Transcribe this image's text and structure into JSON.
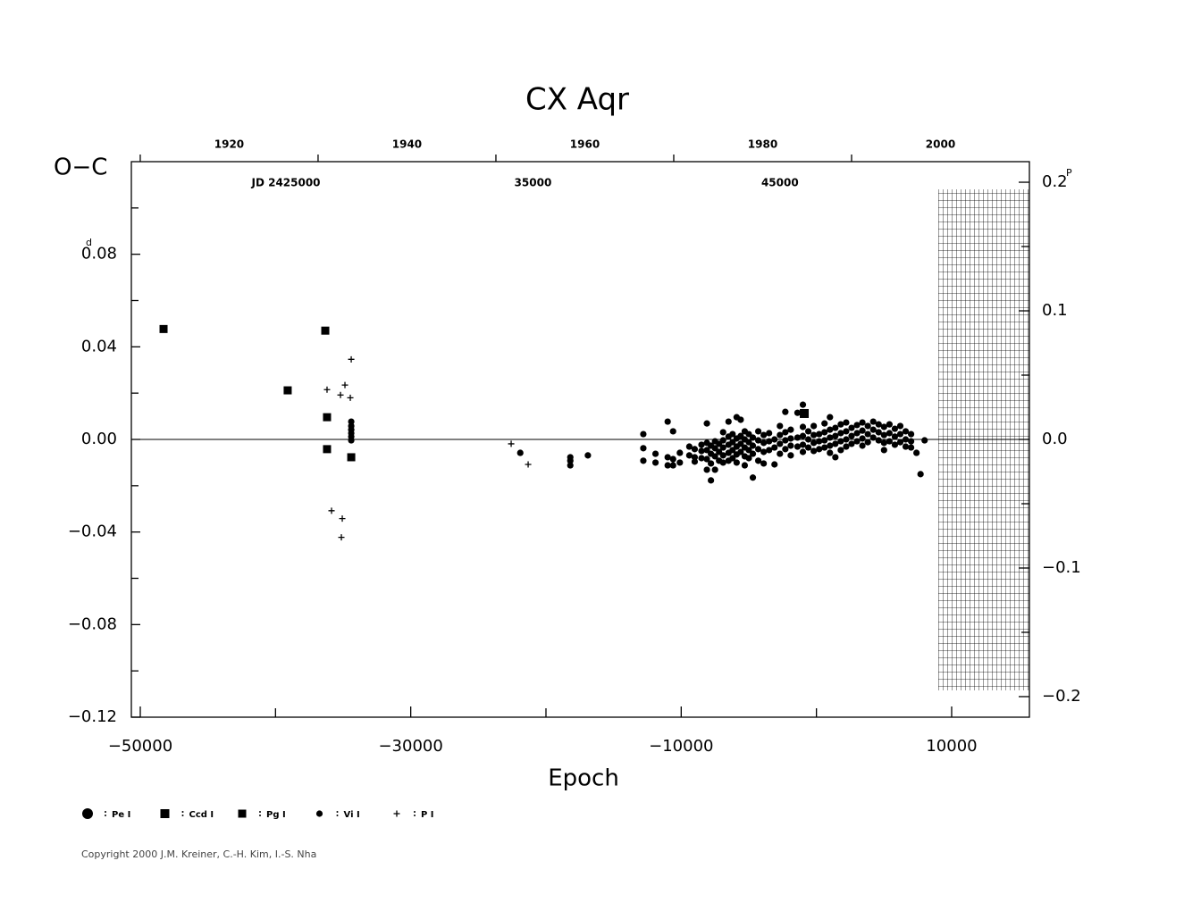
{
  "chart_data": {
    "type": "scatter",
    "title": "CX Aqr",
    "ylabel": "O−C",
    "xlabel": "Epoch",
    "y_unit": "d",
    "y2_unit": "P",
    "copyright": "Copyright 2000 J.M. Kreiner, C.-H. Kim, I.-S. Nha",
    "xlim": [
      -50660,
      15750
    ],
    "xticks": [
      {
        "value": -50000,
        "label": "−50000"
      },
      {
        "value": -30000,
        "label": "−30000"
      },
      {
        "value": -10000,
        "label": "−10000"
      },
      10000
    ],
    "xminor": [
      -40000,
      -20000,
      0
    ],
    "ylim": [
      -0.12,
      0.12
    ],
    "yticks": [
      {
        "value": -0.12,
        "label": "−0.12"
      },
      {
        "value": -0.08,
        "label": "−0.08"
      },
      {
        "value": -0.04,
        "label": "−0.04"
      },
      {
        "value": 0,
        "label": "0.00"
      },
      0.04,
      0.08
    ],
    "yminor": [
      -0.1,
      -0.06,
      -0.02,
      0.02,
      0.06,
      0.1
    ],
    "y2lim": [
      -0.216,
      0.216
    ],
    "y2ticks": [
      {
        "value": -0.2,
        "label": "−0.2"
      },
      {
        "value": -0.1,
        "label": "−0.1"
      },
      {
        "value": 0,
        "label": "0.0"
      },
      0.1,
      0.2
    ],
    "y2minor": [
      -0.15,
      -0.05,
      0.05,
      0.15
    ],
    "x2lim": [
      1909,
      2010
    ],
    "x2ticks": [
      1920,
      1940,
      1960,
      1980,
      2000
    ],
    "x2minor": [
      1910,
      1930,
      1950,
      1970,
      1990
    ],
    "jdlim": [
      18740,
      55100
    ],
    "jdticks": [
      {
        "value": 25000,
        "label": "JD 2425000"
      },
      {
        "value": 35000,
        "label": "35000"
      },
      {
        "value": 45000,
        "label": "45000"
      }
    ],
    "series": [
      {
        "name": "Pe I",
        "marker": "circle-large",
        "x": [],
        "values": []
      },
      {
        "name": "Ccd I",
        "marker": "square-large",
        "x": [
          -900
        ],
        "values": [
          0.0112
        ]
      },
      {
        "name": "Pg I",
        "marker": "square",
        "x": [
          -48280,
          -39100,
          -36320,
          -36190,
          -36190,
          -34400
        ],
        "values": [
          0.0477,
          0.0212,
          0.047,
          0.0096,
          -0.0042,
          -0.0077
        ]
      },
      {
        "name": "Vi I",
        "marker": "dot",
        "x": [
          -34400,
          -34400,
          -34400,
          -34400,
          -34400,
          -34400,
          -21900,
          -18200,
          -18200,
          -18200,
          -16900,
          -12800,
          -12800,
          -12800,
          -11900,
          -11900,
          -11000,
          -11000,
          -11000,
          -10600,
          -10600,
          -10600,
          -10100,
          -10100,
          -9400,
          -9400,
          -9000,
          -9000,
          -9000,
          -8500,
          -8500,
          -8500,
          -8100,
          -8100,
          -8100,
          -8100,
          -8100,
          -7800,
          -7800,
          -7800,
          -7800,
          -7500,
          -7500,
          -7500,
          -7500,
          -7200,
          -7200,
          -7200,
          -6900,
          -6900,
          -6900,
          -6900,
          -6900,
          -6500,
          -6500,
          -6500,
          -6500,
          -6500,
          -6200,
          -6200,
          -6200,
          -6200,
          -5900,
          -5900,
          -5900,
          -5900,
          -5900,
          -5600,
          -5600,
          -5600,
          -5600,
          -5300,
          -5300,
          -5300,
          -5300,
          -5300,
          -5000,
          -5000,
          -5000,
          -5000,
          -4700,
          -4700,
          -4700,
          -4700,
          -4300,
          -4300,
          -4300,
          -4300,
          -3900,
          -3900,
          -3900,
          -3900,
          -3500,
          -3500,
          -3500,
          -3100,
          -3100,
          -3100,
          -2700,
          -2700,
          -2700,
          -2700,
          -2300,
          -2300,
          -2300,
          -2300,
          -1900,
          -1900,
          -1900,
          -1900,
          -1400,
          -1400,
          -1400,
          -1000,
          -1000,
          -1000,
          -1000,
          -1000,
          -600,
          -600,
          -600,
          -200,
          -200,
          -200,
          -200,
          200,
          200,
          200,
          600,
          600,
          600,
          600,
          1000,
          1000,
          1000,
          1000,
          1000,
          1400,
          1400,
          1400,
          1400,
          1800,
          1800,
          1800,
          1800,
          2200,
          2200,
          2200,
          2200,
          2600,
          2600,
          2600,
          3000,
          3000,
          3000,
          3400,
          3400,
          3400,
          3400,
          3800,
          3800,
          3800,
          4200,
          4200,
          4200,
          4600,
          4600,
          4600,
          5000,
          5000,
          5000,
          5000,
          5400,
          5400,
          5400,
          5800,
          5800,
          5800,
          6200,
          6200,
          6200,
          6600,
          6600,
          6600,
          7000,
          7000,
          7000,
          7400,
          7700,
          8000
        ],
        "values": [
          0.0077,
          0.0058,
          0.0042,
          0.0027,
          0.0012,
          -0.0004,
          -0.0058,
          -0.0077,
          -0.0092,
          -0.0112,
          -0.0069,
          0.0023,
          -0.0038,
          -0.0092,
          -0.0062,
          -0.01,
          0.0077,
          -0.0077,
          -0.0112,
          0.0035,
          -0.0085,
          -0.0112,
          -0.0058,
          -0.01,
          -0.0031,
          -0.0069,
          -0.0042,
          -0.0077,
          -0.0096,
          -0.0023,
          -0.005,
          -0.0081,
          0.0069,
          -0.0015,
          -0.0046,
          -0.0085,
          -0.0131,
          -0.0177,
          -0.0027,
          -0.0062,
          -0.0104,
          -0.0131,
          -0.0008,
          -0.0038,
          -0.0073,
          -0.0019,
          -0.0054,
          -0.0092,
          0.0031,
          -0.0004,
          -0.0035,
          -0.0069,
          -0.01,
          0.0077,
          0.0012,
          -0.0023,
          -0.0058,
          -0.0092,
          0.0023,
          -0.0012,
          -0.0046,
          -0.0081,
          0.0096,
          0.0004,
          -0.0031,
          -0.0065,
          -0.01,
          0.0085,
          0.0015,
          -0.0019,
          -0.0054,
          0.0035,
          0,
          -0.0035,
          -0.0073,
          -0.0112,
          0.0023,
          -0.0012,
          -0.0046,
          -0.0081,
          -0.0165,
          0.0008,
          -0.0027,
          -0.0062,
          0.0035,
          -0.0004,
          -0.0042,
          -0.0092,
          0.0019,
          -0.0015,
          -0.0054,
          -0.0104,
          0.0027,
          -0.0008,
          -0.0046,
          -0.0108,
          0,
          -0.0035,
          0.0058,
          0.0019,
          -0.0019,
          -0.0062,
          0.0119,
          0.0031,
          -0.0004,
          -0.0042,
          0.0042,
          0.0004,
          -0.0027,
          -0.0069,
          0.0115,
          0.0008,
          -0.0031,
          0.015,
          0.0054,
          0.0015,
          -0.0023,
          -0.0054,
          0.0035,
          0,
          -0.0035,
          0.0058,
          0.0019,
          -0.0015,
          -0.005,
          0.0023,
          -0.0008,
          -0.0042,
          0.0069,
          0.0031,
          -0.0004,
          -0.0035,
          0.0096,
          0.0042,
          0.0008,
          -0.0027,
          -0.0058,
          0.005,
          0.0015,
          -0.0019,
          -0.0077,
          0.0065,
          0.0027,
          -0.0008,
          -0.0046,
          0.0073,
          0.0035,
          0,
          -0.0031,
          0.005,
          0.0015,
          -0.0019,
          0.0062,
          0.0027,
          -0.0008,
          0.0073,
          0.0038,
          0.0004,
          -0.0027,
          0.0058,
          0.0023,
          -0.0012,
          0.0077,
          0.0042,
          0.0008,
          0.0065,
          0.0031,
          -0.0004,
          0.0054,
          0.0019,
          -0.0015,
          -0.0046,
          0.0065,
          0.0027,
          -0.0008,
          0.0046,
          0.0012,
          -0.0023,
          0.0058,
          0.0023,
          -0.0012,
          0.0035,
          0,
          -0.0031,
          0.0023,
          -0.0008,
          -0.0035,
          -0.0058,
          -0.015,
          -0.0004
        ]
      },
      {
        "name": "P I",
        "marker": "plus",
        "x": [
          -36190,
          -34865,
          -35195,
          -34468,
          -34400,
          -35857,
          -35063,
          -35130,
          -22573,
          -21317
        ],
        "values": [
          0.0215,
          0.0235,
          0.0192,
          0.018,
          0.0346,
          -0.0308,
          -0.0342,
          -0.0423,
          -0.0019,
          -0.0108
        ]
      }
    ]
  }
}
